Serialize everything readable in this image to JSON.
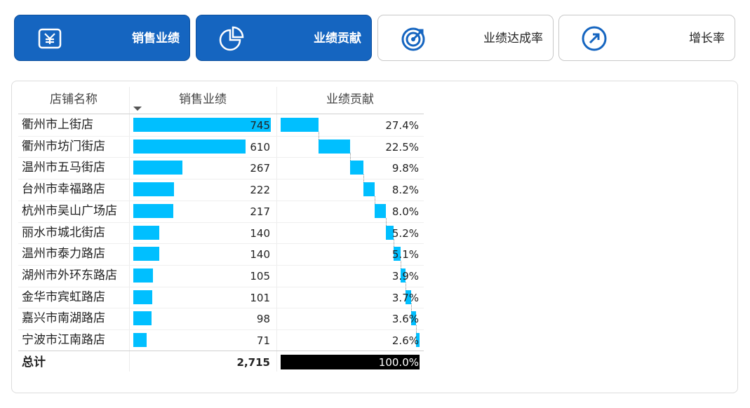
{
  "tabs": [
    {
      "label": "销售业绩",
      "icon": "yen-icon",
      "active": true
    },
    {
      "label": "业绩贡献",
      "icon": "pie-chart-icon",
      "active": true
    },
    {
      "label": "业绩达成率",
      "icon": "target-icon",
      "active": false
    },
    {
      "label": "增长率",
      "icon": "arrow-up-right-icon",
      "active": false
    }
  ],
  "table": {
    "headers": {
      "store": "店铺名称",
      "sales": "销售业绩",
      "contribution": "业绩贡献"
    },
    "rows": [
      {
        "store": "衢州市上街店",
        "sales": 745,
        "sales_label": "745",
        "pct": 27.4,
        "pct_label": "27.4%"
      },
      {
        "store": "衢州市坊门街店",
        "sales": 610,
        "sales_label": "610",
        "pct": 22.5,
        "pct_label": "22.5%"
      },
      {
        "store": "温州市五马街店",
        "sales": 267,
        "sales_label": "267",
        "pct": 9.8,
        "pct_label": "9.8%"
      },
      {
        "store": "台州市幸福路店",
        "sales": 222,
        "sales_label": "222",
        "pct": 8.2,
        "pct_label": "8.2%"
      },
      {
        "store": "杭州市吴山广场店",
        "sales": 217,
        "sales_label": "217",
        "pct": 8.0,
        "pct_label": "8.0%"
      },
      {
        "store": "丽水市城北街店",
        "sales": 140,
        "sales_label": "140",
        "pct": 5.2,
        "pct_label": "5.2%"
      },
      {
        "store": "温州市泰力路店",
        "sales": 140,
        "sales_label": "140",
        "pct": 5.1,
        "pct_label": "5.1%"
      },
      {
        "store": "湖州市外环东路店",
        "sales": 105,
        "sales_label": "105",
        "pct": 3.9,
        "pct_label": "3.9%"
      },
      {
        "store": "金华市宾虹路店",
        "sales": 101,
        "sales_label": "101",
        "pct": 3.7,
        "pct_label": "3.7%"
      },
      {
        "store": "嘉兴市南湖路店",
        "sales": 98,
        "sales_label": "98",
        "pct": 3.6,
        "pct_label": "3.6%"
      },
      {
        "store": "宁波市江南路店",
        "sales": 71,
        "sales_label": "71",
        "pct": 2.6,
        "pct_label": "2.6%"
      }
    ],
    "total": {
      "label": "总计",
      "sales_label": "2,715",
      "pct_label": "100.0%"
    }
  },
  "colors": {
    "accent": "#1565c0",
    "bar": "#00bfff",
    "total_bar": "#000000"
  }
}
